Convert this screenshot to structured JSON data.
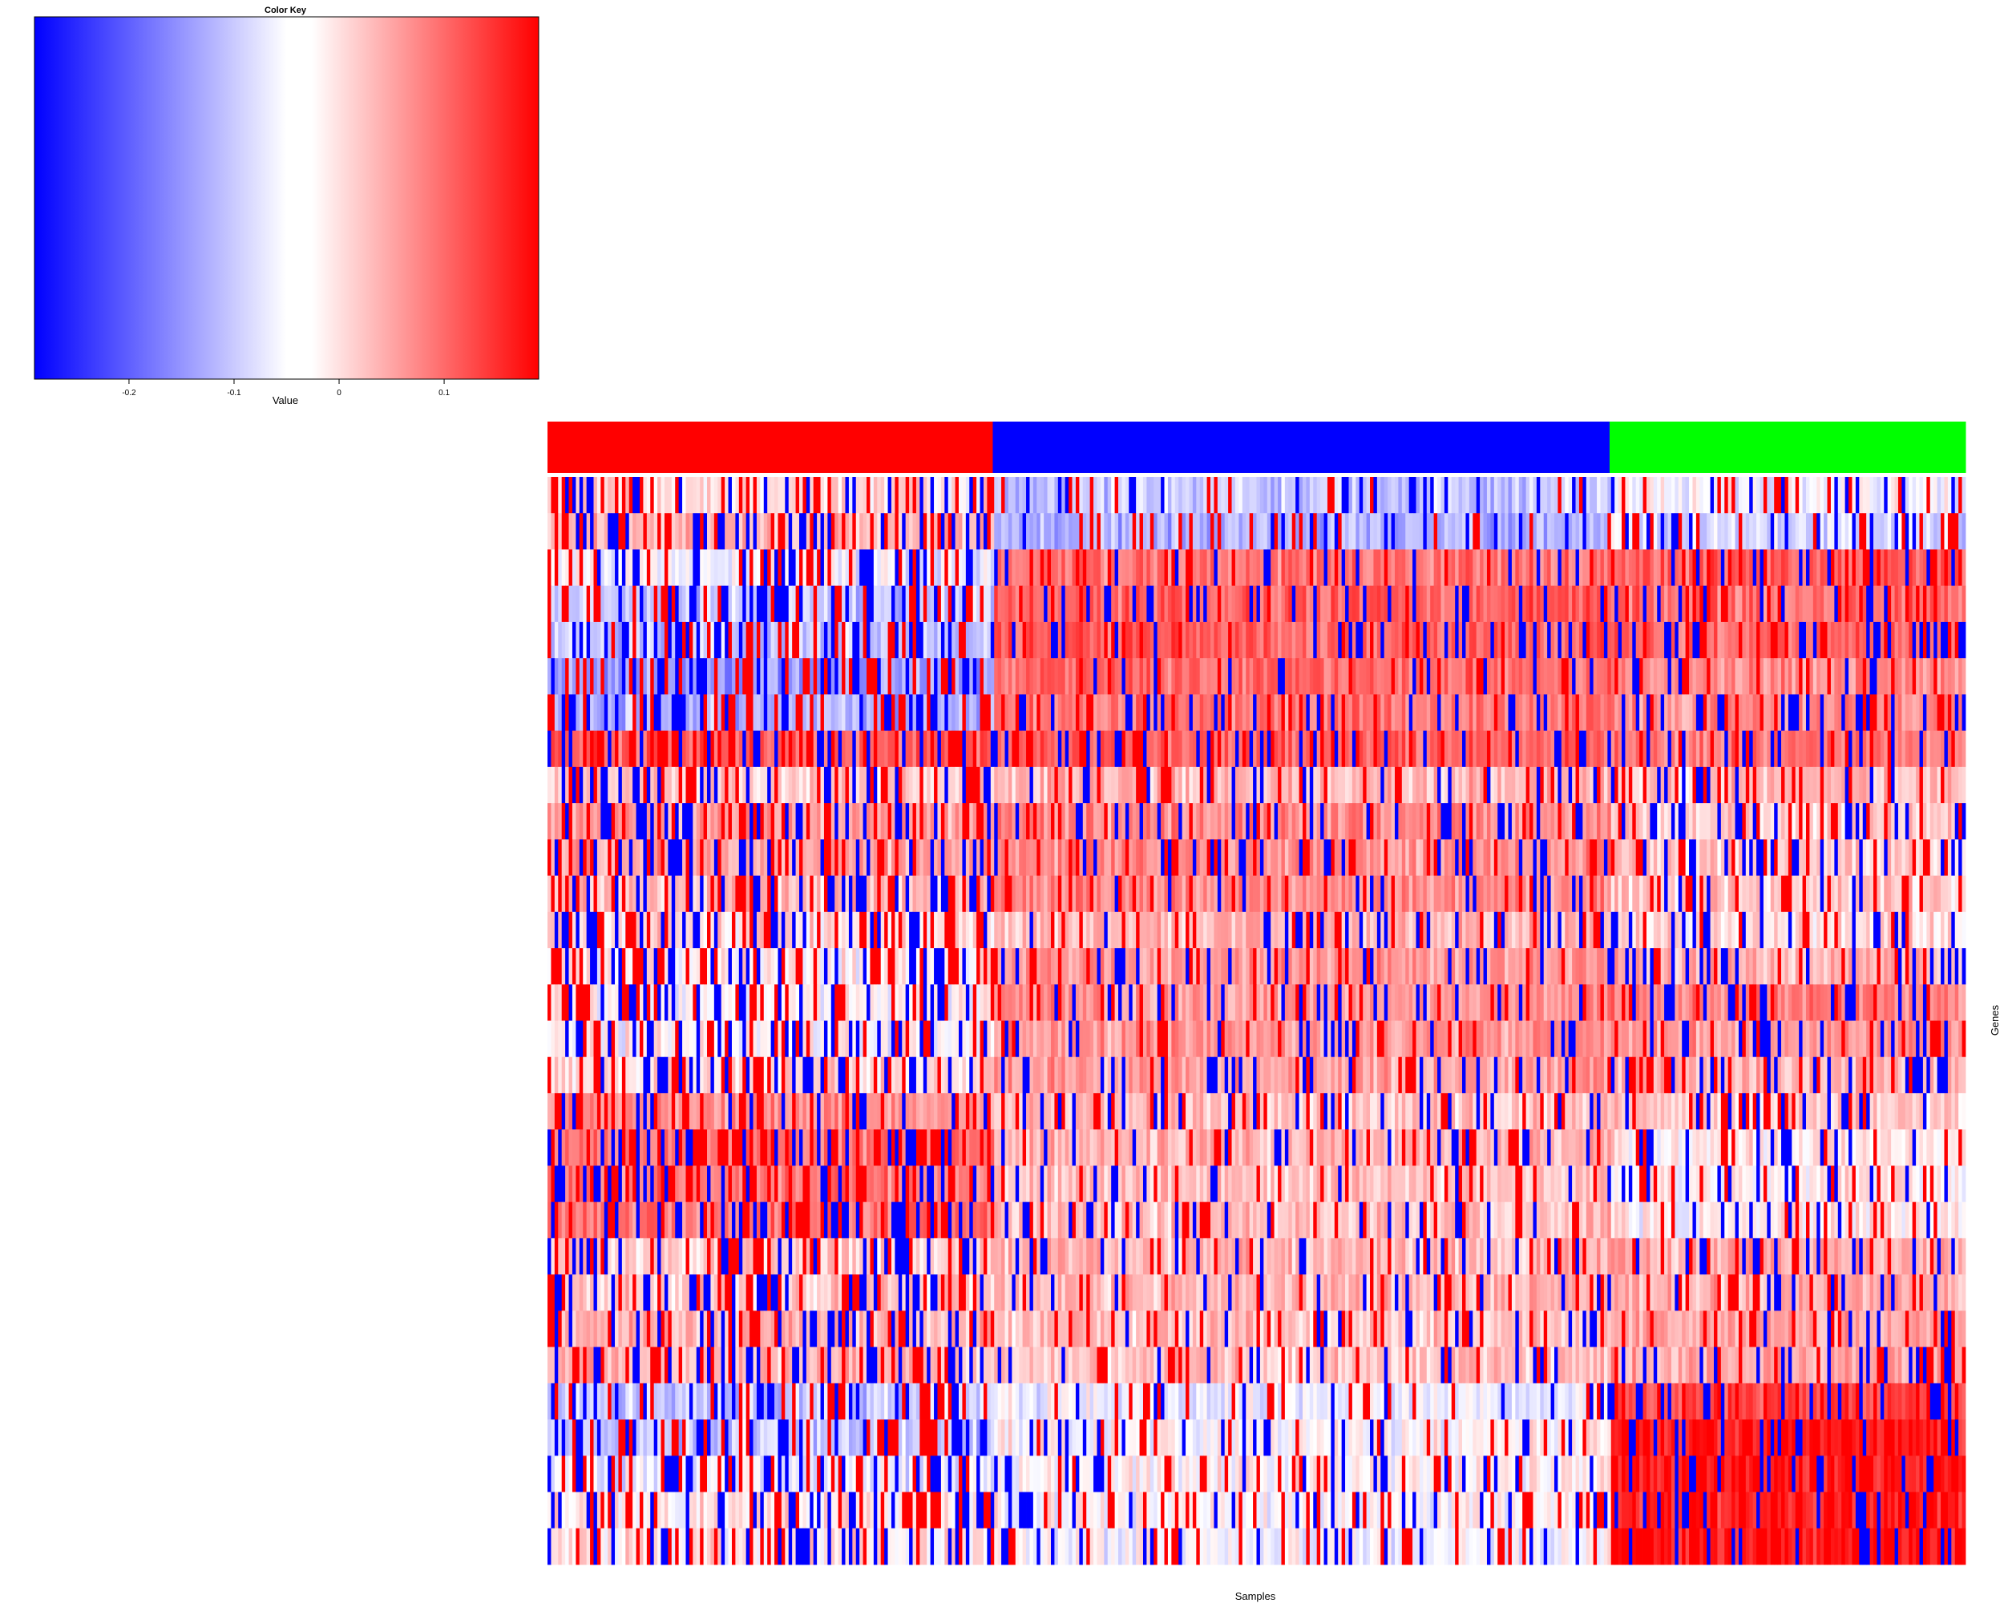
{
  "chart_data": {
    "type": "heatmap",
    "color_key": {
      "title": "Color Key",
      "xlabel": "Value",
      "range": [
        -0.29,
        0.19
      ],
      "ticks": [
        {
          "value": -0.2,
          "label": "-0.2"
        },
        {
          "value": -0.1,
          "label": "-0.1"
        },
        {
          "value": 0,
          "label": "0"
        },
        {
          "value": 0.1,
          "label": "0.1"
        }
      ],
      "colors": {
        "low": "#0000ff",
        "mid": "#ffffff",
        "high": "#ff0000"
      }
    },
    "xlabel": "Samples",
    "ylabel": "Genes",
    "sample_groups": [
      {
        "color": "#ff0000",
        "fraction": 0.314
      },
      {
        "color": "#0000ff",
        "fraction": 0.435
      },
      {
        "color": "#00ff00",
        "fraction": 0.251
      }
    ],
    "n_rows": 30,
    "n_cols": 400,
    "row_profile_note_omitted": true,
    "row_means_by_group": [
      [
        -0.02,
        -0.1,
        -0.05
      ],
      [
        0.02,
        -0.12,
        -0.08
      ],
      [
        -0.06,
        0.08,
        0.1
      ],
      [
        -0.1,
        0.1,
        0.09
      ],
      [
        -0.1,
        0.1,
        0.09
      ],
      [
        -0.14,
        0.09,
        0.06
      ],
      [
        -0.12,
        0.08,
        0.06
      ],
      [
        0.1,
        0.1,
        0.08
      ],
      [
        0.0,
        0.02,
        0.01
      ],
      [
        0.04,
        0.06,
        0.0
      ],
      [
        0.04,
        0.06,
        0.0
      ],
      [
        0.01,
        0.06,
        0.0
      ],
      [
        -0.01,
        0.02,
        -0.01
      ],
      [
        -0.03,
        0.05,
        0.02
      ],
      [
        -0.04,
        0.05,
        0.07
      ],
      [
        -0.04,
        0.05,
        0.05
      ],
      [
        -0.01,
        0.04,
        0.02
      ],
      [
        0.06,
        0.01,
        0.0
      ],
      [
        0.08,
        0.02,
        -0.02
      ],
      [
        0.08,
        0.01,
        -0.03
      ],
      [
        0.08,
        0.01,
        -0.03
      ],
      [
        0.0,
        0.02,
        0.03
      ],
      [
        0.0,
        0.02,
        0.03
      ],
      [
        0.02,
        0.01,
        0.04
      ],
      [
        0.02,
        0.01,
        0.04
      ],
      [
        -0.1,
        -0.06,
        0.12
      ],
      [
        -0.1,
        -0.04,
        0.17
      ],
      [
        -0.07,
        -0.03,
        0.17
      ],
      [
        -0.02,
        -0.04,
        0.16
      ],
      [
        -0.02,
        -0.05,
        0.17
      ]
    ]
  }
}
